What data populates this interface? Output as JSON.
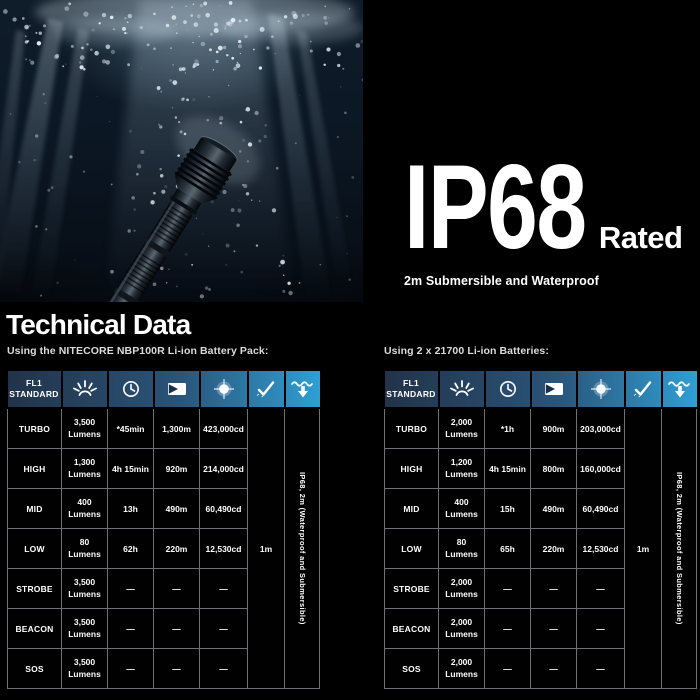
{
  "hero": {
    "title": "IP68",
    "suffix": "Rated",
    "subtitle": "2m Submersible and Waterproof"
  },
  "section_title": "Technical Data",
  "header": {
    "first": "FL1 STANDARD",
    "icons": [
      "brightness-icon",
      "runtime-icon",
      "beam-distance-icon",
      "beam-intensity-icon",
      "impact-resistance-icon",
      "submersible-icon"
    ]
  },
  "tables": [
    {
      "caption": "Using the NITECORE NBP100R Li-ion Battery Pack:",
      "impact": "1m",
      "waterproof": "IP68, 2m (Waterproof and Submersible)",
      "rows": [
        {
          "mode": "TURBO",
          "lumens": "3,500 Lumens",
          "runtime": "*45min",
          "distance": "1,300m",
          "intensity": "423,000cd"
        },
        {
          "mode": "HIGH",
          "lumens": "1,300 Lumens",
          "runtime": "4h 15min",
          "distance": "920m",
          "intensity": "214,000cd"
        },
        {
          "mode": "MID",
          "lumens": "400 Lumens",
          "runtime": "13h",
          "distance": "490m",
          "intensity": "60,490cd"
        },
        {
          "mode": "LOW",
          "lumens": "80 Lumens",
          "runtime": "62h",
          "distance": "220m",
          "intensity": "12,530cd"
        },
        {
          "mode": "STROBE",
          "lumens": "3,500 Lumens",
          "runtime": "—",
          "distance": "—",
          "intensity": "—"
        },
        {
          "mode": "BEACON",
          "lumens": "3,500 Lumens",
          "runtime": "—",
          "distance": "—",
          "intensity": "—"
        },
        {
          "mode": "SOS",
          "lumens": "3,500 Lumens",
          "runtime": "—",
          "distance": "—",
          "intensity": "—"
        }
      ]
    },
    {
      "caption": "Using 2 x 21700 Li-ion Batteries:",
      "impact": "1m",
      "waterproof": "IP68, 2m (Waterproof and Submersible)",
      "rows": [
        {
          "mode": "TURBO",
          "lumens": "2,000 Lumens",
          "runtime": "*1h",
          "distance": "900m",
          "intensity": "203,000cd"
        },
        {
          "mode": "HIGH",
          "lumens": "1,200 Lumens",
          "runtime": "4h 15min",
          "distance": "800m",
          "intensity": "160,000cd"
        },
        {
          "mode": "MID",
          "lumens": "400 Lumens",
          "runtime": "15h",
          "distance": "490m",
          "intensity": "60,490cd"
        },
        {
          "mode": "LOW",
          "lumens": "80 Lumens",
          "runtime": "65h",
          "distance": "220m",
          "intensity": "12,530cd"
        },
        {
          "mode": "STROBE",
          "lumens": "2,000 Lumens",
          "runtime": "—",
          "distance": "—",
          "intensity": "—"
        },
        {
          "mode": "BEACON",
          "lumens": "2,000 Lumens",
          "runtime": "—",
          "distance": "—",
          "intensity": "—"
        },
        {
          "mode": "SOS",
          "lumens": "2,000 Lumens",
          "runtime": "—",
          "distance": "—",
          "intensity": "—"
        }
      ]
    }
  ],
  "colors": {
    "background": "#000000",
    "header_gradient_start": "#223349",
    "header_gradient_end": "#2f9fd4",
    "table_border": "#6e7277",
    "text": "#ffffff"
  }
}
